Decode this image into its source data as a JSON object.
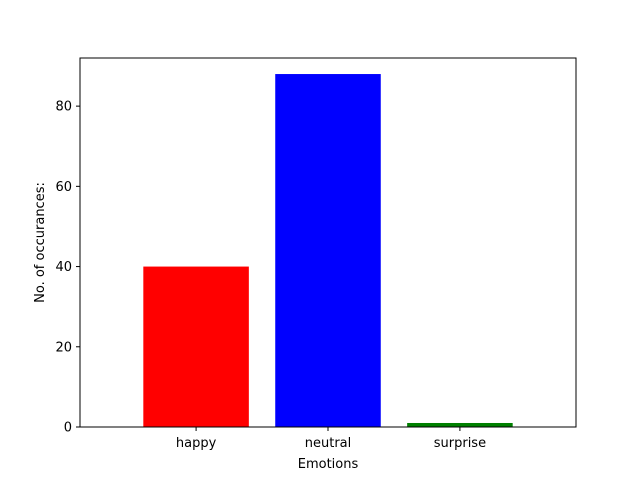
{
  "chart_data": {
    "type": "bar",
    "categories": [
      "happy",
      "neutral",
      "surprise"
    ],
    "values": [
      40,
      88,
      1
    ],
    "colors": [
      "#ff0000",
      "#0000ff",
      "#008000"
    ],
    "xlabel": "Emotions",
    "ylabel": "No. of occurances:",
    "ylim": [
      0,
      92
    ],
    "yticks": [
      0,
      20,
      40,
      60,
      80
    ],
    "grid": false
  }
}
